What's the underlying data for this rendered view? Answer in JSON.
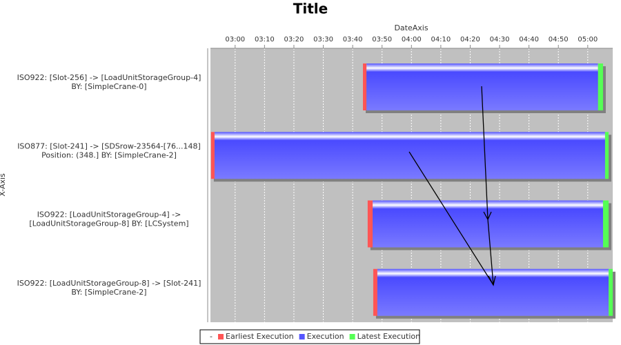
{
  "chart_data": {
    "type": "gantt",
    "title": "Title",
    "x_label": "DateAxis",
    "y_label": "X-Axis",
    "categories": [
      [
        "ISO922: [Slot-256] -> [LoadUnitStorageGroup-4]",
        "BY: [SimpleCrane-0]"
      ],
      [
        "ISO877: [Slot-241] -> [SDSrow-23564-[76...148]",
        "Position: (348.] BY: [SimpleCrane-2]"
      ],
      [
        "ISO922: [LoadUnitStorageGroup-4] ->",
        "[LoadUnitStorageGroup-8] BY: [LCSystem]"
      ],
      [
        "ISO922: [LoadUnitStorageGroup-8] -> [Slot-241]",
        "BY: [SimpleCrane-2]"
      ]
    ],
    "series": [
      {
        "name": "Earliest Execution",
        "color": "#ff5555",
        "start": [
          223.5,
          171.8,
          225.1,
          227.0
        ],
        "end": [
          224.7,
          173.0,
          226.8,
          228.4
        ]
      },
      {
        "name": "Execution",
        "color": "#5555ff",
        "start": [
          224.7,
          173.0,
          226.8,
          228.4
        ],
        "end": [
          303.5,
          305.9,
          305.2,
          307.1
        ]
      },
      {
        "name": "Latest Execution",
        "color": "#55ff55",
        "start": [
          303.5,
          305.9,
          305.2,
          307.1
        ],
        "end": [
          305.2,
          307.1,
          307.1,
          308.5
        ]
      }
    ],
    "legend_marker": "-",
    "xlim": [
      171.6,
      308.5
    ],
    "xticks": [
      {
        "value": 180,
        "label": "03:00"
      },
      {
        "value": 190,
        "label": "03:10"
      },
      {
        "value": 200,
        "label": "03:20"
      },
      {
        "value": 210,
        "label": "03:30"
      },
      {
        "value": 220,
        "label": "03:40"
      },
      {
        "value": 230,
        "label": "03:50"
      },
      {
        "value": 240,
        "label": "04:00"
      },
      {
        "value": 250,
        "label": "04:10"
      },
      {
        "value": 260,
        "label": "04:20"
      },
      {
        "value": 270,
        "label": "04:30"
      },
      {
        "value": 280,
        "label": "04:40"
      },
      {
        "value": 290,
        "label": "04:50"
      },
      {
        "value": 300,
        "label": "05:00"
      }
    ],
    "grid": true
  }
}
